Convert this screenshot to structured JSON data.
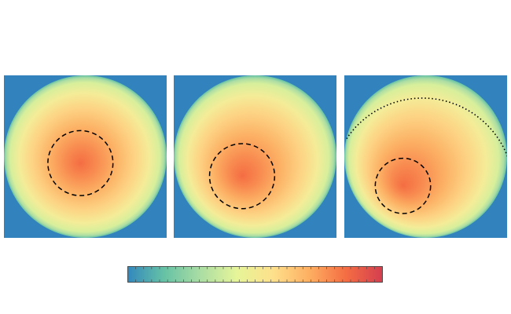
{
  "figure": {
    "title": ""
  },
  "chart_data": {
    "type": "heatmap",
    "description_free": true,
    "colors": {
      "background": "#3282bd",
      "colormap": [
        "#3288bd",
        "#66c2a5",
        "#abdda4",
        "#e6f598",
        "#fee08b",
        "#fdae61",
        "#f46d43",
        "#d53e4f"
      ],
      "contour": "#000000"
    },
    "panels": [
      {
        "disk": {
          "cx": 0.5,
          "cy": 0.5,
          "r": 0.5
        },
        "hotspot": {
          "cx": 0.47,
          "cy": 0.54
        },
        "dashed_circle": {
          "cx": 0.47,
          "cy": 0.54,
          "r": 0.2
        },
        "dotted_arc": null
      },
      {
        "disk": {
          "cx": 0.5,
          "cy": 0.5,
          "r": 0.5
        },
        "hotspot": {
          "cx": 0.42,
          "cy": 0.62
        },
        "dashed_circle": {
          "cx": 0.42,
          "cy": 0.62,
          "r": 0.2
        },
        "dotted_arc": {
          "cx": 0.42,
          "cy": 0.62,
          "r": 0.66
        }
      },
      {
        "disk": {
          "cx": 0.5,
          "cy": 0.5,
          "r": 0.5
        },
        "hotspot": {
          "cx": 0.36,
          "cy": 0.68
        },
        "dashed_circle": {
          "cx": 0.36,
          "cy": 0.68,
          "r": 0.17
        },
        "dotted_arc": {
          "cx": 0.48,
          "cy": 0.7,
          "r": 0.56
        }
      }
    ],
    "colorbar": {
      "ticks": 32,
      "labels": []
    }
  }
}
